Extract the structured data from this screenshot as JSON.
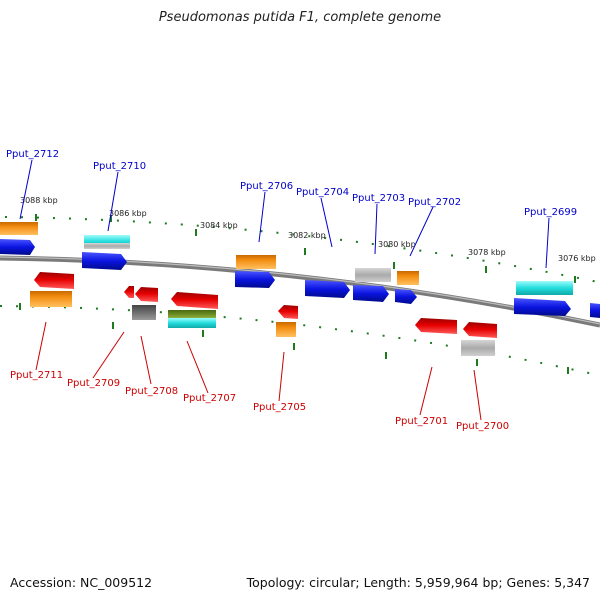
{
  "title": "Pseudomonas putida F1, complete genome",
  "footer": {
    "accession": "Accession: NC_009512",
    "summary": "Topology: circular; Length: 5,959,964 bp; Genes: 5,347"
  },
  "colors": {
    "forward_label": "#0000cc",
    "reverse_label": "#cc0000",
    "backbone": "#808080",
    "tick": "#1f7a1f",
    "blue": "#0a14e0",
    "orange": "#f28c10",
    "cyan": "#22dddd",
    "gray": "#aaaaaa",
    "red": "#e60000",
    "darkgray": "#666666",
    "olive": "#6b8e23"
  },
  "ruler_labels": [
    "3088 kbp",
    "3086 kbp",
    "3084 kbp",
    "3082 kbp",
    "3080 kbp",
    "3078 kbp",
    "3076 kbp"
  ],
  "forward_genes": [
    "Pput_2712",
    "Pput_2710",
    "Pput_2706",
    "Pput_2704",
    "Pput_2703",
    "Pput_2702",
    "Pput_2699"
  ],
  "reverse_genes": [
    "Pput_2711",
    "Pput_2709",
    "Pput_2708",
    "Pput_2707",
    "Pput_2705",
    "Pput_2701",
    "Pput_2700"
  ]
}
